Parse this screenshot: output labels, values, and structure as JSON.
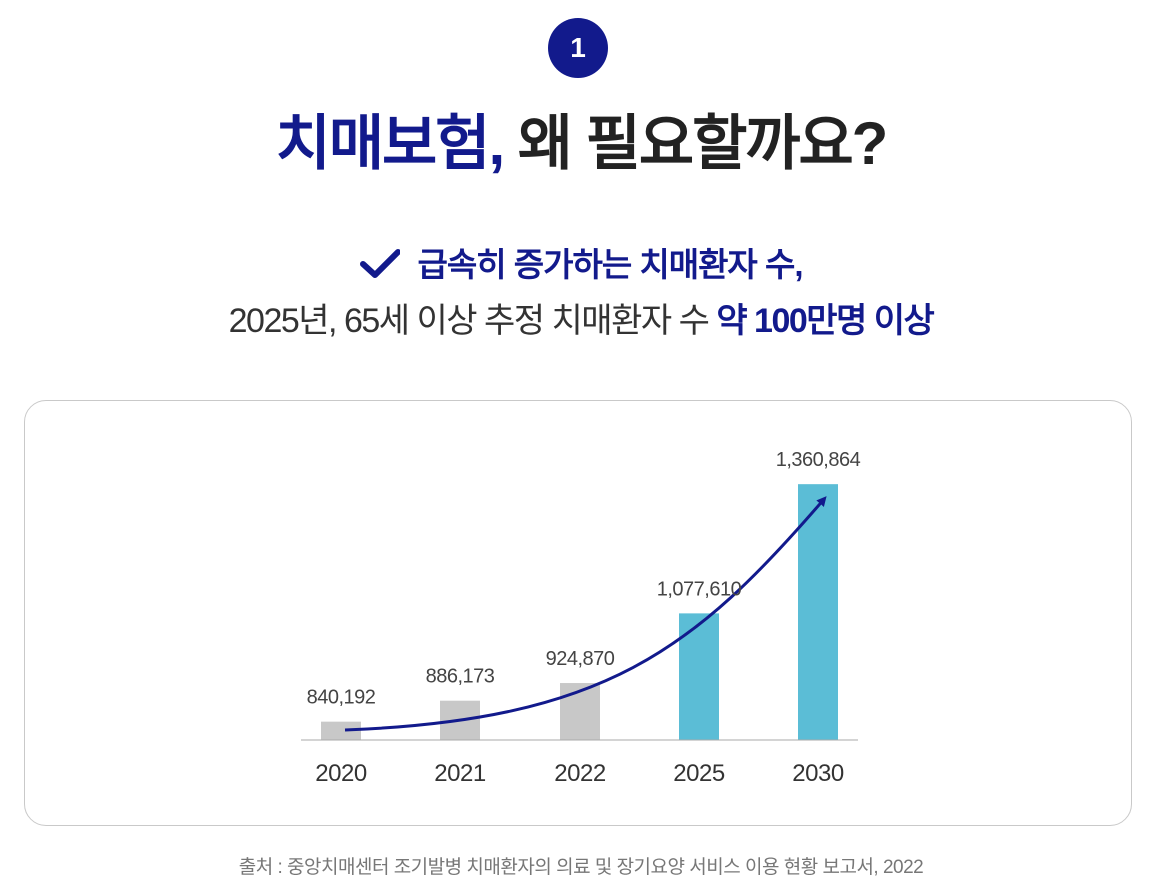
{
  "badge": {
    "number": "1"
  },
  "title": {
    "accent": "치매보험,",
    "rest": "왜 필요할까요?"
  },
  "subtitle": {
    "check_icon": "checkmark-icon",
    "line1": "급속히 증가하는 치매환자 수,",
    "line2_prefix": "2025년, 65세 이상 추정 치매환자 수",
    "line2_highlight": "약 100만명 이상"
  },
  "colors": {
    "accent": "#121a8c",
    "bar_past": "#c8c8c8",
    "bar_future": "#5bbdd6",
    "arrow": "#121a8c"
  },
  "chart_data": {
    "type": "bar",
    "categories": [
      "2020",
      "2021",
      "2022",
      "2025",
      "2030"
    ],
    "values": [
      840192,
      886173,
      924870,
      1077610,
      1360864
    ],
    "value_labels": [
      "840,192",
      "886,173",
      "924,870",
      "1,077,610",
      "1,360,864"
    ],
    "bar_colors": [
      "#c8c8c8",
      "#c8c8c8",
      "#c8c8c8",
      "#5bbdd6",
      "#5bbdd6"
    ],
    "title": "",
    "xlabel": "",
    "ylabel": "",
    "ylim": [
      800000,
      1370000
    ],
    "grid": false,
    "legend": "none",
    "trend_arrow": true
  },
  "source": "출처 : 중앙치매센터 조기발병 치매환자의 의료 및 장기요양 서비스 이용 현황 보고서, 2022"
}
